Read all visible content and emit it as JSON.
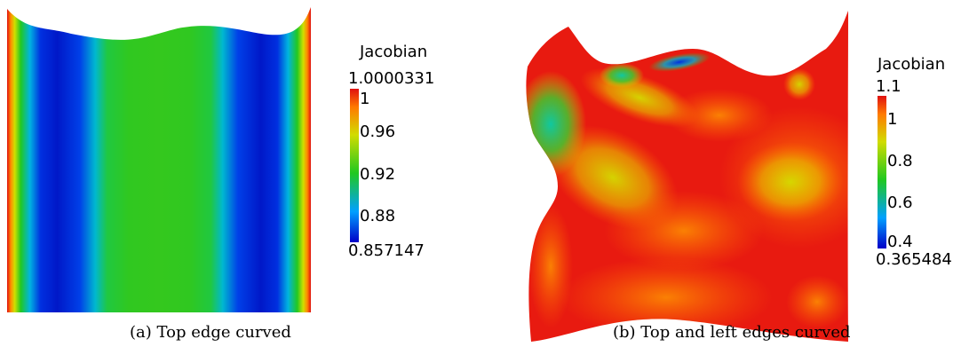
{
  "panel_a": {
    "legend_title": "Jacobian",
    "max_label": "1.0000331",
    "min_label": "0.857147",
    "ticks": [
      "1",
      "0.96",
      "0.92",
      "0.88"
    ],
    "caption": "(a)  Top edge curved"
  },
  "panel_b": {
    "legend_title": "Jacobian",
    "max_label": "1.1",
    "min_label": "0.365484",
    "ticks": [
      "1",
      "0.8",
      "0.6",
      "0.4"
    ],
    "caption": "(b)  Top and left edges curved"
  },
  "colors": {
    "colormap": [
      "#0000c8",
      "#00a0ff",
      "#20c820",
      "#d2dc00",
      "#ff7a00",
      "#e01010"
    ]
  }
}
